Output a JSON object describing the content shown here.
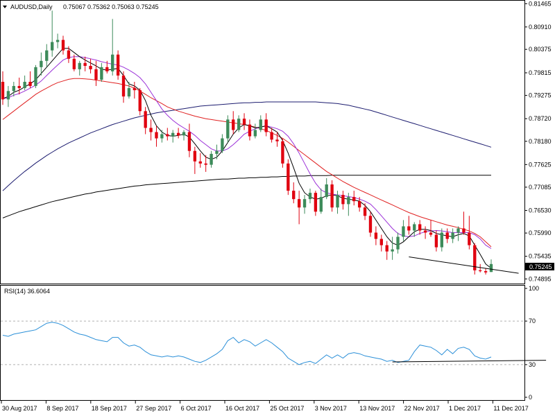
{
  "header": {
    "symbol_timeframe": "AUDUSD,Daily",
    "ohlc": "0.75067 0.75362 0.75063 0.75245"
  },
  "current_price_label": "0.75245",
  "rsi_label": "RSI(14) 36.6064",
  "colors": {
    "bull": "#3d8b5a",
    "bear": "#e0000f",
    "ma_fast": "#000000",
    "ma_purple": "#9b30d8",
    "ma_red": "#e02020",
    "ma_navy": "#1a1a6e",
    "ma_black_long": "#000000",
    "rsi_line": "#2a8fd8"
  },
  "chart_data": [
    {
      "type": "candlestick",
      "title": "AUDUSD,Daily",
      "y_axis_ticks": [
        "0.81465",
        "0.80910",
        "0.80375",
        "0.79815",
        "0.79275",
        "0.78720",
        "0.78180",
        "0.77625",
        "0.77085",
        "0.76530",
        "0.75990",
        "0.75435",
        "0.74895"
      ],
      "ylim": [
        0.748,
        0.8152
      ],
      "x_axis_ticks": [
        "30 Aug 2017",
        "8 Sep 2017",
        "18 Sep 2017",
        "27 Sep 2017",
        "6 Oct 2017",
        "16 Oct 2017",
        "25 Oct 2017",
        "3 Nov 2017",
        "13 Nov 2017",
        "22 Nov 2017",
        "1 Dec 2017",
        "11 Dec 2017"
      ],
      "last_close": 0.75245,
      "candles": [
        [
          0.796,
          0.7985,
          0.7905,
          0.7918
        ],
        [
          0.7918,
          0.795,
          0.79,
          0.7938
        ],
        [
          0.7938,
          0.796,
          0.7925,
          0.795
        ],
        [
          0.795,
          0.797,
          0.793,
          0.7945
        ],
        [
          0.7945,
          0.7975,
          0.794,
          0.796
        ],
        [
          0.796,
          0.7985,
          0.7945,
          0.795
        ],
        [
          0.795,
          0.8,
          0.7945,
          0.7995
        ],
        [
          0.7995,
          0.803,
          0.7975,
          0.801
        ],
        [
          0.801,
          0.805,
          0.7995,
          0.8035
        ],
        [
          0.8035,
          0.813,
          0.802,
          0.8055
        ],
        [
          0.8055,
          0.8075,
          0.804,
          0.806
        ],
        [
          0.806,
          0.807,
          0.8025,
          0.8035
        ],
        [
          0.8035,
          0.8045,
          0.8005,
          0.8015
        ],
        [
          0.8015,
          0.8025,
          0.7985,
          0.799
        ],
        [
          0.799,
          0.801,
          0.7975,
          0.8005
        ],
        [
          0.8005,
          0.802,
          0.7985,
          0.7998
        ],
        [
          0.7998,
          0.8015,
          0.798,
          0.799
        ],
        [
          0.799,
          0.801,
          0.795,
          0.7965
        ],
        [
          0.7965,
          0.8005,
          0.796,
          0.7995
        ],
        [
          0.7995,
          0.801,
          0.798,
          0.7985
        ],
        [
          0.7985,
          0.811,
          0.7975,
          0.8025
        ],
        [
          0.8025,
          0.8035,
          0.7965,
          0.7975
        ],
        [
          0.7975,
          0.7985,
          0.791,
          0.7925
        ],
        [
          0.7925,
          0.796,
          0.792,
          0.7945
        ],
        [
          0.7945,
          0.796,
          0.792,
          0.794
        ],
        [
          0.794,
          0.7945,
          0.788,
          0.789
        ],
        [
          0.789,
          0.79,
          0.7835,
          0.785
        ],
        [
          0.785,
          0.787,
          0.782,
          0.784
        ],
        [
          0.784,
          0.7855,
          0.7805,
          0.7825
        ],
        [
          0.7825,
          0.7845,
          0.7815,
          0.7835
        ],
        [
          0.7835,
          0.785,
          0.782,
          0.783
        ],
        [
          0.783,
          0.7845,
          0.7815,
          0.7838
        ],
        [
          0.7838,
          0.785,
          0.7825,
          0.7832
        ],
        [
          0.7832,
          0.7845,
          0.782,
          0.784
        ],
        [
          0.784,
          0.786,
          0.778,
          0.7795
        ],
        [
          0.7795,
          0.7805,
          0.774,
          0.777
        ],
        [
          0.777,
          0.779,
          0.7755,
          0.7765
        ],
        [
          0.7765,
          0.7785,
          0.7745,
          0.7762
        ],
        [
          0.7762,
          0.7795,
          0.7755,
          0.7788
        ],
        [
          0.7788,
          0.781,
          0.7775,
          0.7795
        ],
        [
          0.7795,
          0.7835,
          0.779,
          0.7825
        ],
        [
          0.7825,
          0.788,
          0.7815,
          0.787
        ],
        [
          0.787,
          0.789,
          0.7835,
          0.7845
        ],
        [
          0.7845,
          0.788,
          0.784,
          0.7872
        ],
        [
          0.7872,
          0.7885,
          0.7845,
          0.7858
        ],
        [
          0.7858,
          0.787,
          0.782,
          0.783
        ],
        [
          0.783,
          0.786,
          0.7825,
          0.7845
        ],
        [
          0.7845,
          0.788,
          0.784,
          0.787
        ],
        [
          0.787,
          0.7885,
          0.783,
          0.784
        ],
        [
          0.784,
          0.785,
          0.7815,
          0.7822
        ],
        [
          0.7822,
          0.784,
          0.7805,
          0.7818
        ],
        [
          0.7818,
          0.7825,
          0.7755,
          0.7765
        ],
        [
          0.7765,
          0.7775,
          0.769,
          0.77
        ],
        [
          0.77,
          0.772,
          0.767,
          0.768
        ],
        [
          0.768,
          0.77,
          0.762,
          0.766
        ],
        [
          0.766,
          0.769,
          0.7645,
          0.768
        ],
        [
          0.768,
          0.7705,
          0.767,
          0.7695
        ],
        [
          0.7695,
          0.77,
          0.764,
          0.765
        ],
        [
          0.765,
          0.7705,
          0.7645,
          0.7685
        ],
        [
          0.7685,
          0.773,
          0.768,
          0.7715
        ],
        [
          0.7715,
          0.7725,
          0.765,
          0.766
        ],
        [
          0.766,
          0.77,
          0.7645,
          0.769
        ],
        [
          0.769,
          0.77,
          0.7655,
          0.7668
        ],
        [
          0.7668,
          0.7695,
          0.764,
          0.7685
        ],
        [
          0.7685,
          0.77,
          0.7665,
          0.7675
        ],
        [
          0.7675,
          0.7685,
          0.765,
          0.766
        ],
        [
          0.766,
          0.767,
          0.763,
          0.764
        ],
        [
          0.764,
          0.765,
          0.759,
          0.76
        ],
        [
          0.76,
          0.7615,
          0.757,
          0.7585
        ],
        [
          0.7585,
          0.7595,
          0.7555,
          0.757
        ],
        [
          0.757,
          0.758,
          0.7535,
          0.7555
        ],
        [
          0.7555,
          0.759,
          0.7535,
          0.756
        ],
        [
          0.756,
          0.76,
          0.755,
          0.759
        ],
        [
          0.759,
          0.763,
          0.758,
          0.7615
        ],
        [
          0.7615,
          0.764,
          0.7595,
          0.7605
        ],
        [
          0.7605,
          0.7625,
          0.759,
          0.762
        ],
        [
          0.762,
          0.763,
          0.7595,
          0.7605
        ],
        [
          0.7605,
          0.7615,
          0.7585,
          0.76
        ],
        [
          0.76,
          0.763,
          0.759,
          0.7595
        ],
        [
          0.7595,
          0.7605,
          0.7555,
          0.7565
        ],
        [
          0.7565,
          0.761,
          0.7555,
          0.76
        ],
        [
          0.76,
          0.761,
          0.7575,
          0.7585
        ],
        [
          0.7585,
          0.761,
          0.7575,
          0.76
        ],
        [
          0.76,
          0.7615,
          0.758,
          0.761
        ],
        [
          0.761,
          0.765,
          0.7595,
          0.76
        ],
        [
          0.76,
          0.764,
          0.756,
          0.757
        ],
        [
          0.757,
          0.7575,
          0.75,
          0.751
        ],
        [
          0.751,
          0.7525,
          0.7505,
          0.7508
        ],
        [
          0.7508,
          0.7515,
          0.75,
          0.7505
        ],
        [
          0.7506,
          0.7536,
          0.7506,
          0.7525
        ]
      ],
      "lines": {
        "ma_fast": [
          0.792,
          0.7925,
          0.7935,
          0.794,
          0.7948,
          0.7955,
          0.7965,
          0.798,
          0.7995,
          0.801,
          0.8025,
          0.804,
          0.804,
          0.803,
          0.802,
          0.8012,
          0.8005,
          0.7998,
          0.799,
          0.7988,
          0.799,
          0.7992,
          0.7975,
          0.7955,
          0.795,
          0.794,
          0.7915,
          0.788,
          0.7855,
          0.784,
          0.7832,
          0.783,
          0.7832,
          0.7835,
          0.7828,
          0.7812,
          0.7795,
          0.778,
          0.7775,
          0.778,
          0.7795,
          0.7815,
          0.7835,
          0.785,
          0.7858,
          0.7855,
          0.785,
          0.7852,
          0.7855,
          0.7848,
          0.784,
          0.782,
          0.779,
          0.7755,
          0.7718,
          0.7695,
          0.7685,
          0.768,
          0.7682,
          0.7688,
          0.769,
          0.7688,
          0.7682,
          0.768,
          0.7678,
          0.7675,
          0.7665,
          0.765,
          0.763,
          0.761,
          0.759,
          0.7575,
          0.757,
          0.7578,
          0.759,
          0.7602,
          0.7608,
          0.7608,
          0.7605,
          0.7598,
          0.7595,
          0.7592,
          0.759,
          0.7595,
          0.7598,
          0.7592,
          0.757,
          0.7548,
          0.7525,
          0.7515
        ],
        "ma_purple": [
          0.792,
          0.7922,
          0.7928,
          0.7932,
          0.7938,
          0.7945,
          0.7952,
          0.7962,
          0.7975,
          0.7988,
          0.8,
          0.8012,
          0.8018,
          0.802,
          0.802,
          0.8018,
          0.8015,
          0.8012,
          0.8008,
          0.8005,
          0.8002,
          0.8,
          0.7995,
          0.7988,
          0.798,
          0.797,
          0.7955,
          0.7935,
          0.7915,
          0.7895,
          0.788,
          0.7868,
          0.7858,
          0.785,
          0.7842,
          0.7832,
          0.782,
          0.781,
          0.78,
          0.7795,
          0.7795,
          0.78,
          0.781,
          0.7822,
          0.7835,
          0.7842,
          0.7848,
          0.7852,
          0.7855,
          0.7852,
          0.7848,
          0.7842,
          0.783,
          0.7812,
          0.779,
          0.7765,
          0.774,
          0.7718,
          0.7702,
          0.7695,
          0.7692,
          0.769,
          0.7688,
          0.7686,
          0.7684,
          0.768,
          0.7675,
          0.7668,
          0.7655,
          0.764,
          0.7625,
          0.761,
          0.7598,
          0.7592,
          0.759,
          0.7592,
          0.7598,
          0.7602,
          0.7604,
          0.7605,
          0.7604,
          0.7602,
          0.76,
          0.76,
          0.76,
          0.76,
          0.7595,
          0.7585,
          0.757,
          0.7562
        ],
        "ma_red": [
          0.787,
          0.788,
          0.789,
          0.79,
          0.791,
          0.792,
          0.793,
          0.7938,
          0.7945,
          0.7952,
          0.7958,
          0.7962,
          0.7966,
          0.7968,
          0.7968,
          0.7967,
          0.7966,
          0.7964,
          0.7962,
          0.796,
          0.7958,
          0.7956,
          0.7953,
          0.795,
          0.7945,
          0.7938,
          0.793,
          0.7922,
          0.7915,
          0.7908,
          0.79,
          0.7895,
          0.789,
          0.7886,
          0.7882,
          0.7878,
          0.7875,
          0.7872,
          0.787,
          0.7868,
          0.7866,
          0.7864,
          0.7862,
          0.786,
          0.7858,
          0.7855,
          0.7852,
          0.7848,
          0.7844,
          0.7838,
          0.7832,
          0.7825,
          0.7816,
          0.7806,
          0.7796,
          0.7786,
          0.7776,
          0.7766,
          0.7756,
          0.7746,
          0.7738,
          0.773,
          0.7722,
          0.7715,
          0.7708,
          0.7702,
          0.7696,
          0.769,
          0.7684,
          0.7678,
          0.7672,
          0.7666,
          0.766,
          0.7654,
          0.7648,
          0.7643,
          0.7638,
          0.7634,
          0.763,
          0.7626,
          0.7622,
          0.7618,
          0.7615,
          0.7612,
          0.7608,
          0.7604,
          0.7598,
          0.759,
          0.7578,
          0.7566
        ],
        "ma_navy": [
          0.77,
          0.7712,
          0.7724,
          0.7735,
          0.7746,
          0.7756,
          0.7766,
          0.7775,
          0.7784,
          0.7792,
          0.78,
          0.7807,
          0.7814,
          0.782,
          0.7826,
          0.7832,
          0.7838,
          0.7843,
          0.7848,
          0.7853,
          0.7858,
          0.7862,
          0.7866,
          0.787,
          0.7874,
          0.7877,
          0.788,
          0.7883,
          0.7886,
          0.7888,
          0.789,
          0.7892,
          0.7894,
          0.7896,
          0.7898,
          0.79,
          0.7902,
          0.7903,
          0.7904,
          0.7905,
          0.7906,
          0.7907,
          0.7908,
          0.7909,
          0.791,
          0.791,
          0.7911,
          0.7911,
          0.7912,
          0.7912,
          0.7912,
          0.7912,
          0.7912,
          0.7912,
          0.7912,
          0.7912,
          0.7912,
          0.7912,
          0.7911,
          0.791,
          0.7909,
          0.7908,
          0.7906,
          0.7904,
          0.7901,
          0.7898,
          0.7895,
          0.7892,
          0.7888,
          0.7884,
          0.788,
          0.7876,
          0.7872,
          0.7868,
          0.7864,
          0.786,
          0.7856,
          0.7852,
          0.7848,
          0.7844,
          0.784,
          0.7836,
          0.7832,
          0.7828,
          0.7824,
          0.782,
          0.7816,
          0.7812,
          0.7808,
          0.7804
        ],
        "ma_black_long": [
          0.7635,
          0.764,
          0.7645,
          0.765,
          0.7654,
          0.7658,
          0.7662,
          0.7666,
          0.767,
          0.7674,
          0.7677,
          0.768,
          0.7683,
          0.7686,
          0.7689,
          0.7692,
          0.7694,
          0.7697,
          0.7699,
          0.7701,
          0.7703,
          0.7705,
          0.7707,
          0.7709,
          0.7711,
          0.7712,
          0.7714,
          0.7715,
          0.7716,
          0.7717,
          0.7718,
          0.7719,
          0.772,
          0.7721,
          0.7722,
          0.7723,
          0.7724,
          0.7725,
          0.7726,
          0.7727,
          0.7728,
          0.7728,
          0.7729,
          0.773,
          0.773,
          0.7731,
          0.7731,
          0.7732,
          0.7732,
          0.7733,
          0.7733,
          0.7734,
          0.7734,
          0.7735,
          0.7735,
          0.7735,
          0.7736,
          0.7736,
          0.7736,
          0.7736,
          0.7737,
          0.7737,
          0.7737,
          0.7737,
          0.7737,
          0.7737,
          0.7737,
          0.7737,
          0.7737,
          0.7737,
          0.7737,
          0.7737,
          0.7737,
          0.7737,
          0.7737,
          0.7737,
          0.7737,
          0.7737,
          0.7737,
          0.7737,
          0.7737,
          0.7737,
          0.7737,
          0.7737,
          0.7737,
          0.7737,
          0.7737,
          0.7737,
          0.7737,
          0.7737
        ]
      },
      "trendline": [
        [
          74,
          0.7542
        ],
        [
          94,
          0.7503
        ]
      ]
    },
    {
      "type": "line",
      "title": "RSI(14) 36.6064",
      "y_axis_ticks": [
        "100",
        "70",
        "30",
        "0"
      ],
      "ylim": [
        0,
        100
      ],
      "levels": [
        70,
        30
      ],
      "values": [
        57,
        56,
        58,
        59,
        60,
        61,
        62,
        65,
        68,
        69,
        68,
        66,
        63,
        60,
        58,
        57,
        55,
        53,
        52,
        51,
        55,
        55,
        50,
        47,
        48,
        46,
        42,
        39,
        38,
        37,
        38,
        37,
        38,
        37,
        35,
        33,
        32,
        34,
        37,
        40,
        44,
        52,
        55,
        50,
        53,
        51,
        47,
        50,
        53,
        50,
        46,
        42,
        36,
        33,
        30,
        32,
        33,
        31,
        35,
        39,
        36,
        39,
        36,
        40,
        41,
        40,
        38,
        37,
        36,
        35,
        33,
        34,
        32,
        33,
        34,
        42,
        48,
        47,
        46,
        43,
        39,
        44,
        40,
        45,
        46,
        44,
        38,
        36,
        35,
        37
      ],
      "trendline": [
        [
          71,
          32.5
        ],
        [
          99,
          34
        ]
      ]
    }
  ]
}
